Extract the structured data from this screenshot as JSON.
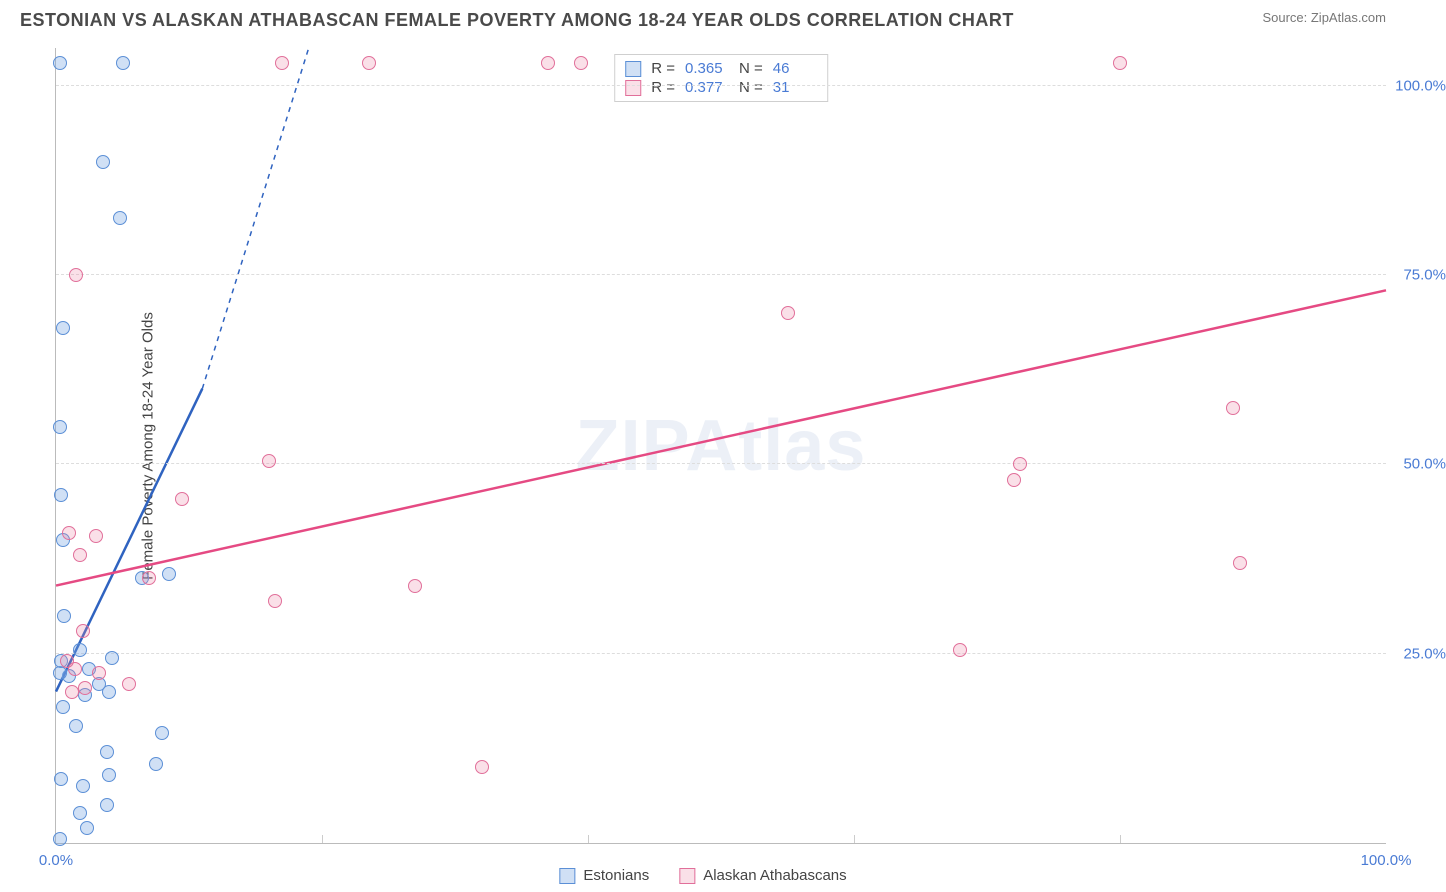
{
  "title": "ESTONIAN VS ALASKAN ATHABASCAN FEMALE POVERTY AMONG 18-24 YEAR OLDS CORRELATION CHART",
  "source_label": "Source: ",
  "source_name": "ZipAtlas.com",
  "y_axis_label": "Female Poverty Among 18-24 Year Olds",
  "watermark": "ZIPAtlas",
  "chart": {
    "type": "scatter",
    "xlim": [
      0,
      100
    ],
    "ylim": [
      0,
      105
    ],
    "x_ticks": [
      0,
      100
    ],
    "x_tick_labels": [
      "0.0%",
      "100.0%"
    ],
    "y_ticks": [
      25,
      50,
      75,
      100
    ],
    "y_tick_labels": [
      "25.0%",
      "50.0%",
      "75.0%",
      "100.0%"
    ],
    "x_minor_gridlines": [
      20,
      40,
      60,
      80
    ],
    "grid_color": "#e0e0e0",
    "axis_color": "#bbbbbb",
    "background_color": "#ffffff",
    "tick_label_color": "#4a7bd4",
    "tick_label_fontsize": 15,
    "point_radius": 7,
    "series": [
      {
        "name": "Estonians",
        "color_fill": "rgba(120,165,225,0.35)",
        "color_stroke": "#5b8fd6",
        "R": "0.365",
        "N": "46",
        "trend": {
          "x1": 0,
          "y1": 20,
          "x2": 11,
          "y2": 60,
          "dash_x2": 19,
          "dash_y2": 105,
          "stroke": "#2f63c0",
          "width": 2.5
        },
        "points": [
          [
            0.3,
            0.5
          ],
          [
            2.3,
            2.0
          ],
          [
            1.8,
            4.0
          ],
          [
            3.8,
            5.0
          ],
          [
            2.0,
            7.5
          ],
          [
            0.4,
            8.5
          ],
          [
            4.0,
            9.0
          ],
          [
            7.5,
            10.5
          ],
          [
            3.8,
            12.0
          ],
          [
            8.0,
            14.5
          ],
          [
            1.5,
            15.5
          ],
          [
            0.5,
            18.0
          ],
          [
            2.2,
            19.5
          ],
          [
            4.0,
            20.0
          ],
          [
            3.2,
            21.0
          ],
          [
            1.0,
            22.0
          ],
          [
            0.3,
            22.5
          ],
          [
            2.5,
            23.0
          ],
          [
            0.4,
            24.0
          ],
          [
            4.2,
            24.5
          ],
          [
            1.8,
            25.5
          ],
          [
            0.6,
            30.0
          ],
          [
            6.5,
            35.0
          ],
          [
            8.5,
            35.5
          ],
          [
            0.5,
            40.0
          ],
          [
            0.4,
            46.0
          ],
          [
            0.3,
            55.0
          ],
          [
            0.5,
            68.0
          ],
          [
            4.8,
            82.5
          ],
          [
            3.5,
            90.0
          ],
          [
            0.3,
            103.0
          ],
          [
            5.0,
            103.0
          ]
        ]
      },
      {
        "name": "Alaskan Athabascans",
        "color_fill": "rgba(235,130,165,0.25)",
        "color_stroke": "#e16f9a",
        "R": "0.377",
        "N": "31",
        "trend": {
          "x1": 0,
          "y1": 34,
          "x2": 100,
          "y2": 73,
          "stroke": "#e54a83",
          "width": 2.5
        },
        "points": [
          [
            1.2,
            20.0
          ],
          [
            2.2,
            20.5
          ],
          [
            5.5,
            21.0
          ],
          [
            3.2,
            22.5
          ],
          [
            1.4,
            23.0
          ],
          [
            0.8,
            24.0
          ],
          [
            2.0,
            28.0
          ],
          [
            16.5,
            32.0
          ],
          [
            7.0,
            35.0
          ],
          [
            1.8,
            38.0
          ],
          [
            3.0,
            40.5
          ],
          [
            1.0,
            41.0
          ],
          [
            9.5,
            45.5
          ],
          [
            16.0,
            50.5
          ],
          [
            27.0,
            34.0
          ],
          [
            55.0,
            70.0
          ],
          [
            68.0,
            25.5
          ],
          [
            72.5,
            50.0
          ],
          [
            72.0,
            48.0
          ],
          [
            80.0,
            103.0
          ],
          [
            88.5,
            57.5
          ],
          [
            89.0,
            37.0
          ],
          [
            32.0,
            10.0
          ],
          [
            17.0,
            103.0
          ],
          [
            23.5,
            103.0
          ],
          [
            37.0,
            103.0
          ],
          [
            39.5,
            103.0
          ],
          [
            1.5,
            75.0
          ]
        ]
      }
    ]
  },
  "stats_box": {
    "rows": [
      {
        "swatch_fill": "rgba(120,165,225,0.35)",
        "swatch_stroke": "#5b8fd6",
        "r_label": "R =",
        "r_val": "0.365",
        "n_label": "N =",
        "n_val": "46"
      },
      {
        "swatch_fill": "rgba(235,130,165,0.25)",
        "swatch_stroke": "#e16f9a",
        "r_label": "R =",
        "r_val": "0.377",
        "n_label": "N =",
        "n_val": "31"
      }
    ]
  },
  "bottom_legend": [
    {
      "swatch_fill": "rgba(120,165,225,0.35)",
      "swatch_stroke": "#5b8fd6",
      "label": "Estonians"
    },
    {
      "swatch_fill": "rgba(235,130,165,0.25)",
      "swatch_stroke": "#e16f9a",
      "label": "Alaskan Athabascans"
    }
  ]
}
